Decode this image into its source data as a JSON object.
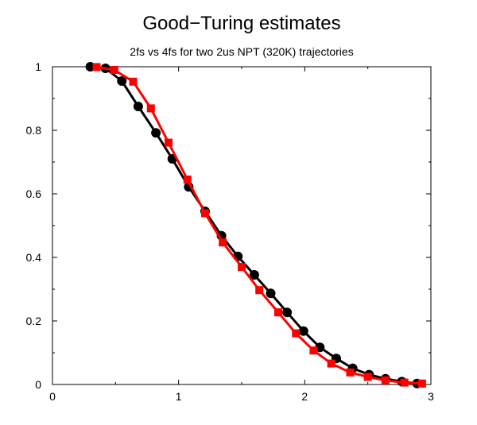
{
  "chart_data": {
    "type": "line",
    "title": "Good−Turing estimates",
    "subtitle": "2fs vs 4fs for two 2us NPT (320K) trajectories",
    "xlabel": "",
    "ylabel": "",
    "xlim": [
      0,
      3
    ],
    "ylim": [
      0,
      1
    ],
    "x_ticks": [
      "0",
      "1",
      "2",
      "3"
    ],
    "y_ticks": [
      "0",
      "0.2",
      "0.4",
      "0.6",
      "0.8",
      "1"
    ],
    "grid": false,
    "series": [
      {
        "color": "#000000",
        "marker": "circle",
        "points": [
          [
            0.3,
            1.0
          ],
          [
            0.42,
            0.995
          ],
          [
            0.55,
            0.955
          ],
          [
            0.68,
            0.875
          ],
          [
            0.82,
            0.792
          ],
          [
            0.95,
            0.71
          ],
          [
            1.08,
            0.622
          ],
          [
            1.21,
            0.545
          ],
          [
            1.34,
            0.468
          ],
          [
            1.47,
            0.403
          ],
          [
            1.6,
            0.345
          ],
          [
            1.73,
            0.287
          ],
          [
            1.86,
            0.227
          ],
          [
            1.99,
            0.168
          ],
          [
            2.12,
            0.117
          ],
          [
            2.25,
            0.082
          ],
          [
            2.38,
            0.051
          ],
          [
            2.51,
            0.031
          ],
          [
            2.64,
            0.018
          ],
          [
            2.77,
            0.009
          ],
          [
            2.89,
            0.003
          ]
        ]
      },
      {
        "color": "#ff0000",
        "marker": "square",
        "points": [
          [
            0.35,
            0.999
          ],
          [
            0.49,
            0.99
          ],
          [
            0.64,
            0.953
          ],
          [
            0.78,
            0.869
          ],
          [
            0.92,
            0.761
          ],
          [
            1.07,
            0.645
          ],
          [
            1.21,
            0.539
          ],
          [
            1.35,
            0.447
          ],
          [
            1.5,
            0.37
          ],
          [
            1.64,
            0.297
          ],
          [
            1.79,
            0.227
          ],
          [
            1.93,
            0.161
          ],
          [
            2.07,
            0.107
          ],
          [
            2.21,
            0.066
          ],
          [
            2.36,
            0.038
          ],
          [
            2.5,
            0.024
          ],
          [
            2.64,
            0.013
          ],
          [
            2.79,
            0.006
          ],
          [
            2.93,
            0.003
          ]
        ]
      }
    ]
  }
}
